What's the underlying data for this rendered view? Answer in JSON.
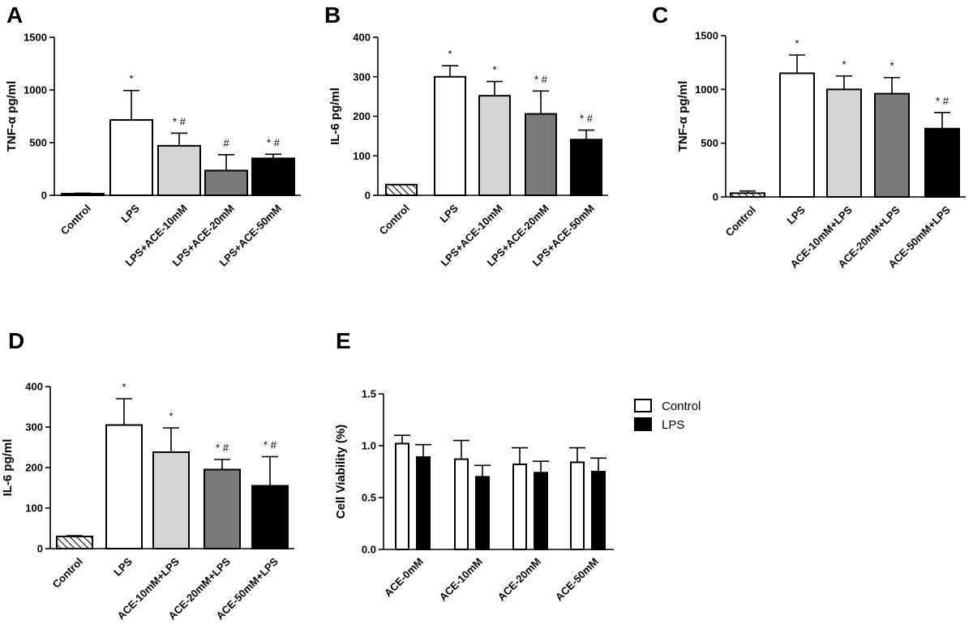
{
  "colors": {
    "white": "#ffffff",
    "light_gray": "#d4d4d4",
    "dark_gray": "#7a7a7a",
    "black": "#000000"
  },
  "chart_data": [
    {
      "panel": "A",
      "type": "bar",
      "ylabel": "TNF-α  pg/ml",
      "ylim": [
        0,
        1500
      ],
      "yticks": [
        0,
        500,
        1000,
        1500
      ],
      "categories": [
        "Control",
        "LPS",
        "LPS+ACE-10mM",
        "LPS+ACE-20mM",
        "LPS+ACE-50mM"
      ],
      "values": [
        15,
        715,
        470,
        235,
        350
      ],
      "errors": [
        5,
        280,
        120,
        150,
        40
      ],
      "fills": [
        "hatch",
        "white",
        "light_gray",
        "dark_gray",
        "black"
      ],
      "annotations": [
        "",
        "*",
        "* #",
        "#",
        "* #"
      ]
    },
    {
      "panel": "B",
      "type": "bar",
      "ylabel": "IL-6  pg/ml",
      "ylim": [
        0,
        400
      ],
      "yticks": [
        0,
        100,
        200,
        300,
        400
      ],
      "categories": [
        "Control",
        "LPS",
        "LPS+ACE-10mM",
        "LPS+ACE-20mM",
        "LPS+ACE-50mM"
      ],
      "values": [
        27,
        300,
        252,
        206,
        141
      ],
      "errors": [
        0,
        28,
        36,
        58,
        24
      ],
      "fills": [
        "hatch",
        "white",
        "light_gray",
        "dark_gray",
        "black"
      ],
      "annotations": [
        "",
        "*",
        "*",
        "* #",
        "* #"
      ]
    },
    {
      "panel": "C",
      "type": "bar",
      "ylabel": "TNF-α  pg/ml",
      "ylim": [
        0,
        1500
      ],
      "yticks": [
        0,
        500,
        1000,
        1500
      ],
      "categories": [
        "Control",
        "LPS",
        "ACE-10mM+LPS",
        "ACE-20mM+LPS",
        "ACE-50mM+LPS"
      ],
      "values": [
        35,
        1150,
        1000,
        960,
        635
      ],
      "errors": [
        20,
        170,
        125,
        150,
        150
      ],
      "fills": [
        "hatch",
        "white",
        "light_gray",
        "dark_gray",
        "black"
      ],
      "annotations": [
        "",
        "*",
        "*",
        "*",
        "* #"
      ]
    },
    {
      "panel": "D",
      "type": "bar",
      "ylabel": "IL-6  pg/ml",
      "ylim": [
        0,
        400
      ],
      "yticks": [
        0,
        100,
        200,
        300,
        400
      ],
      "categories": [
        "Control",
        "LPS",
        "ACE-10mM+LPS",
        "ACE-20mM+LPS",
        "ACE-50mM+LPS"
      ],
      "values": [
        30,
        305,
        238,
        195,
        155
      ],
      "errors": [
        2,
        65,
        60,
        25,
        72
      ],
      "fills": [
        "hatch",
        "white",
        "light_gray",
        "dark_gray",
        "black"
      ],
      "annotations": [
        "",
        "*",
        "*",
        "* #",
        "* #"
      ]
    },
    {
      "panel": "E",
      "type": "bar",
      "ylabel": "Cell Viability (%)",
      "ylim": [
        0,
        1.5
      ],
      "yticks": [
        "0.0",
        "0.5",
        "1.0",
        "1.5"
      ],
      "categories": [
        "ACE-0mM",
        "ACE-10mM",
        "ACE-20mM",
        "ACE-50mM"
      ],
      "series": [
        {
          "name": "Control",
          "fill": "white",
          "values": [
            1.02,
            0.87,
            0.82,
            0.84
          ],
          "errors": [
            0.08,
            0.18,
            0.16,
            0.14
          ]
        },
        {
          "name": "LPS",
          "fill": "black",
          "values": [
            0.89,
            0.7,
            0.74,
            0.75
          ],
          "errors": [
            0.12,
            0.11,
            0.11,
            0.13
          ]
        }
      ],
      "legend": [
        "Control",
        "LPS"
      ]
    }
  ]
}
